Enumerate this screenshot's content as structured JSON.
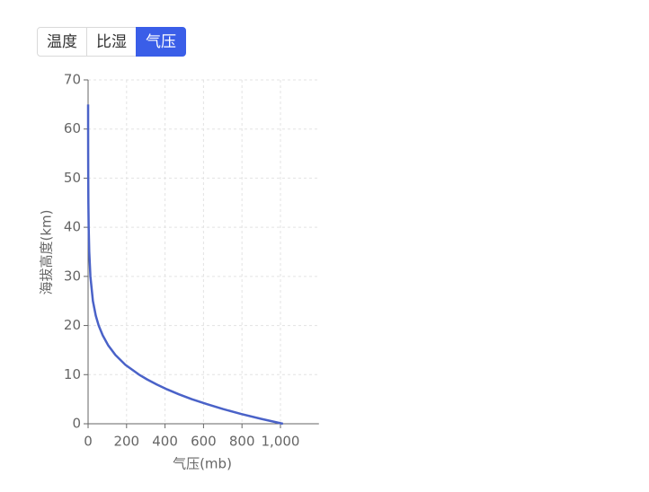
{
  "tabs": [
    "温度",
    "比湿",
    "气压"
  ],
  "active_tab": 2,
  "chart_data": {
    "type": "line",
    "x_label": "气压(mb)",
    "y_label": "海拔高度(km)",
    "x": [
      1013,
      899,
      795,
      701,
      617,
      540,
      472,
      411,
      357,
      308,
      265,
      194,
      142,
      104,
      76,
      55,
      40,
      25,
      12,
      6,
      3,
      1.5,
      0.8,
      0.4,
      0.2,
      0.1
    ],
    "values": [
      0,
      1,
      2,
      3,
      4,
      5,
      6,
      7,
      8,
      9,
      10,
      12,
      14,
      16,
      18,
      20,
      22,
      25,
      30,
      35,
      40,
      45,
      50,
      55,
      60,
      65
    ],
    "color": "#4a62c8",
    "xlim": [
      0,
      1200
    ],
    "xticks": [
      0,
      200,
      400,
      600,
      800,
      {
        "value": 1000,
        "label": "1,000"
      }
    ],
    "ylim": [
      0,
      70
    ],
    "yticks": [
      0,
      10,
      20,
      30,
      40,
      50,
      60,
      70
    ],
    "grid": true
  }
}
